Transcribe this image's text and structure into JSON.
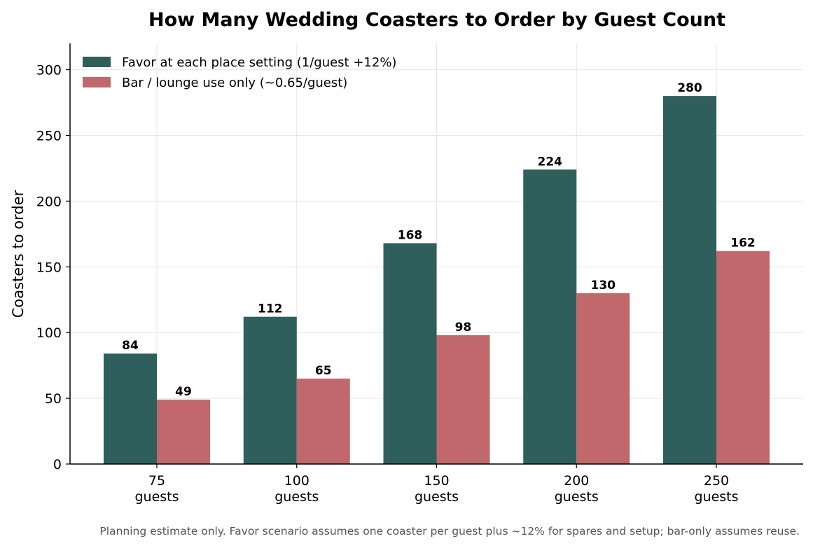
{
  "chart_data": {
    "type": "bar",
    "title": "How Many Wedding Coasters to Order by Guest Count",
    "xlabel": "",
    "ylabel": "Coasters to order",
    "categories": [
      "75\nguests",
      "100\nguests",
      "150\nguests",
      "200\nguests",
      "250\nguests"
    ],
    "series": [
      {
        "name": "Favor at each place setting (1/guest +12%)",
        "values": [
          84,
          112,
          168,
          224,
          280
        ],
        "color": "#2e5f5c"
      },
      {
        "name": "Bar / lounge use only (~0.65/guest)",
        "values": [
          49,
          65,
          98,
          130,
          162
        ],
        "color": "#c0686b"
      }
    ],
    "ylim": [
      0,
      320
    ],
    "yticks": [
      0,
      50,
      100,
      150,
      200,
      250,
      300
    ],
    "grid": true,
    "legend_position": "top-left",
    "footnote": "Planning estimate only. Favor scenario assumes one coaster per guest plus ~12% for spares and setup; bar-only assumes reuse."
  }
}
